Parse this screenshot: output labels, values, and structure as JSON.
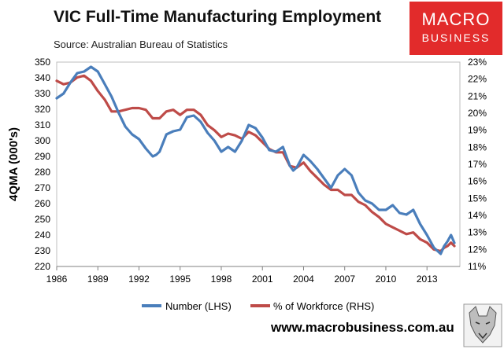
{
  "header": {
    "title": "VIC Full-Time Manufacturing Employment",
    "subtitle": "Source: Australian Bureau of Statistics"
  },
  "logo": {
    "line1": "MACRO",
    "line2": "BUSINESS"
  },
  "footer": {
    "url": "www.macrobusiness.com.au"
  },
  "colors": {
    "number": "#4a7ebb",
    "share": "#be4b48",
    "logo": "#e22b2b"
  },
  "chart_data": {
    "type": "line",
    "title": "VIC Full-Time Manufacturing Employment",
    "ylabel": "4QMA (000's)",
    "ylabel_right": "",
    "xlim": [
      1986,
      2015.4
    ],
    "ylim_left": [
      220,
      350
    ],
    "ylim_right": [
      11,
      23
    ],
    "x_ticks": [
      "1986",
      "1989",
      "1992",
      "1995",
      "1998",
      "2001",
      "2004",
      "2007",
      "2010",
      "2013"
    ],
    "y_ticks_left": [
      "220",
      "230",
      "240",
      "250",
      "260",
      "270",
      "280",
      "290",
      "300",
      "310",
      "320",
      "330",
      "340",
      "350"
    ],
    "y_ticks_right": [
      "11%",
      "12%",
      "13%",
      "14%",
      "15%",
      "16%",
      "17%",
      "18%",
      "19%",
      "20%",
      "21%",
      "22%",
      "23%"
    ],
    "legend": "bottom",
    "series": [
      {
        "name": "Number (LHS)",
        "axis": "left",
        "x": [
          1986,
          1986.5,
          1987,
          1987.5,
          1988,
          1988.5,
          1989,
          1989.5,
          1990,
          1990.5,
          1991,
          1991.5,
          1992,
          1992.5,
          1993,
          1993.25,
          1993.5,
          1994,
          1994.5,
          1995,
          1995.5,
          1996,
          1996.5,
          1997,
          1997.5,
          1998,
          1998.5,
          1999,
          1999.5,
          2000,
          2000.5,
          2001,
          2001.5,
          2002,
          2002.5,
          2003,
          2003.25,
          2003.5,
          2004,
          2004.5,
          2005,
          2005.5,
          2006,
          2006.5,
          2007,
          2007.5,
          2008,
          2008.5,
          2009,
          2009.5,
          2010,
          2010.5,
          2011,
          2011.5,
          2012,
          2012.5,
          2013,
          2013.5,
          2014,
          2014.25,
          2014.5,
          2014.75,
          2015
        ],
        "values": [
          327,
          330,
          337,
          343,
          344,
          347,
          344,
          336,
          328,
          318,
          309,
          304,
          301,
          295,
          290,
          291,
          293,
          304,
          306,
          307,
          315,
          316,
          312,
          305,
          300,
          293,
          296,
          293,
          300,
          310,
          308,
          302,
          294,
          293,
          296,
          284,
          281,
          283,
          291,
          287,
          282,
          276,
          270,
          278,
          282,
          278,
          267,
          262,
          260,
          256,
          256,
          259,
          254,
          253,
          256,
          247,
          240,
          232,
          228,
          233,
          236,
          240,
          235
        ]
      },
      {
        "name": "% of Workforce (RHS)",
        "axis": "right",
        "x": [
          1986,
          1986.5,
          1987,
          1987.5,
          1988,
          1988.5,
          1989,
          1989.5,
          1990,
          1990.5,
          1991,
          1991.5,
          1992,
          1992.5,
          1993,
          1993.5,
          1994,
          1994.5,
          1995,
          1995.5,
          1996,
          1996.5,
          1997,
          1997.5,
          1998,
          1998.5,
          1999,
          1999.5,
          2000,
          2000.5,
          2001,
          2001.5,
          2002,
          2002.5,
          2003,
          2003.5,
          2004,
          2004.5,
          2005,
          2005.5,
          2006,
          2006.5,
          2007,
          2007.5,
          2008,
          2008.5,
          2009,
          2009.5,
          2010,
          2010.5,
          2011,
          2011.5,
          2012,
          2012.5,
          2013,
          2013.5,
          2014,
          2014.25,
          2014.5,
          2014.75,
          2015
        ],
        "values": [
          21.9,
          21.7,
          21.8,
          22.1,
          22.2,
          21.9,
          21.3,
          20.8,
          20.1,
          20.1,
          20.2,
          20.3,
          20.3,
          20.2,
          19.7,
          19.7,
          20.1,
          20.2,
          19.9,
          20.2,
          20.2,
          19.9,
          19.3,
          19.0,
          18.6,
          18.8,
          18.7,
          18.5,
          18.9,
          18.7,
          18.3,
          17.9,
          17.7,
          17.7,
          16.9,
          16.8,
          17.1,
          16.6,
          16.2,
          15.8,
          15.5,
          15.5,
          15.2,
          15.2,
          14.8,
          14.6,
          14.2,
          13.9,
          13.5,
          13.3,
          13.1,
          12.9,
          13.0,
          12.6,
          12.4,
          12.0,
          11.9,
          12.1,
          12.2,
          12.4,
          12.2
        ]
      }
    ]
  }
}
